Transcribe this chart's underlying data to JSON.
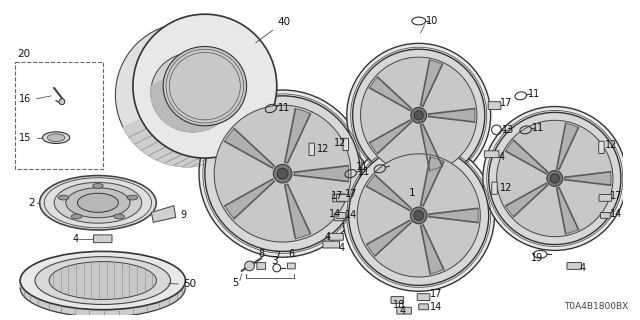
{
  "bg_color": "#ffffff",
  "diagram_ref": "T0A4B1800BX",
  "fig_width": 6.4,
  "fig_height": 3.2,
  "dpi": 100,
  "line_color": "#333333",
  "light_gray": "#cccccc",
  "mid_gray": "#888888",
  "dark_gray": "#555555"
}
